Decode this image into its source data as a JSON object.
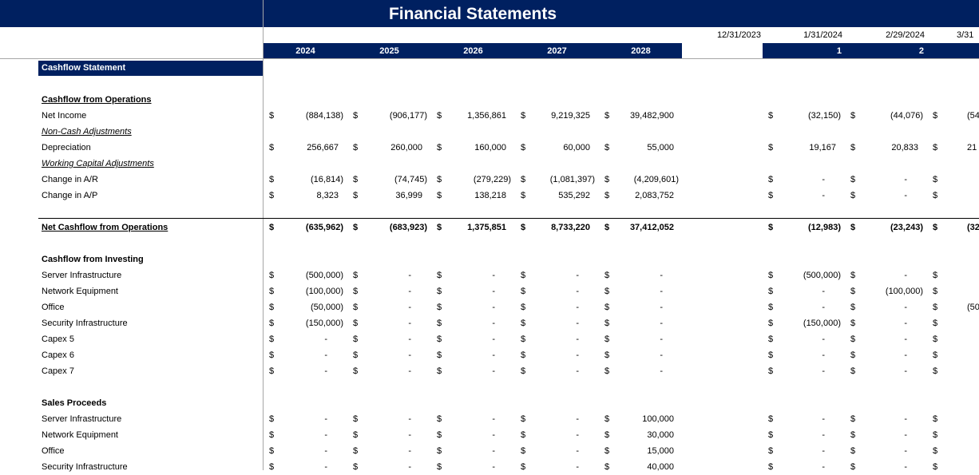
{
  "title": "Financial Statements",
  "colors": {
    "header_navy": "#002060"
  },
  "years": [
    "2024",
    "2025",
    "2026",
    "2027",
    "2028"
  ],
  "dates": [
    "12/31/2023",
    "1/31/2024",
    "2/29/2024",
    "3/31"
  ],
  "periods": [
    "1",
    "2"
  ],
  "rows": [
    {
      "label": "Cashflow Statement",
      "style": "hdr"
    },
    {
      "label": "",
      "style": "blank"
    },
    {
      "label": "Cashflow from Operations",
      "style": "bu"
    },
    {
      "label": "Net Income",
      "annual": [
        "(884,138)",
        "(906,177)",
        "1,356,861",
        "9,219,325",
        "39,482,900"
      ],
      "monthly": [
        "(32,150)",
        "(44,076)"
      ],
      "partial": "(54"
    },
    {
      "label": "Non-Cash Adjustments",
      "style": "iu"
    },
    {
      "label": "Depreciation",
      "annual": [
        "256,667",
        "260,000",
        "160,000",
        "60,000",
        "55,000"
      ],
      "monthly": [
        "19,167",
        "20,833"
      ],
      "partial": "21"
    },
    {
      "label": "Working Capital Adjustments",
      "style": "iu"
    },
    {
      "label": "Change in A/R",
      "annual": [
        "(16,814)",
        "(74,745)",
        "(279,229)",
        "(1,081,397)",
        "(4,209,601)"
      ],
      "monthly": [
        "-",
        "-"
      ],
      "partial": ""
    },
    {
      "label": "Change in A/P",
      "annual": [
        "8,323",
        "36,999",
        "138,218",
        "535,292",
        "2,083,752"
      ],
      "monthly": [
        "-",
        "-"
      ],
      "partial": ""
    },
    {
      "label": "",
      "style": "blank"
    },
    {
      "label": "Net Cashflow from Operations",
      "style": "bu",
      "bold_values": true,
      "annual": [
        "(635,962)",
        "(683,923)",
        "1,375,851",
        "8,733,220",
        "37,412,052"
      ],
      "monthly": [
        "(12,983)",
        "(23,243)"
      ],
      "partial": "(32"
    },
    {
      "label": "",
      "style": "blank"
    },
    {
      "label": "Cashflow from Investing",
      "style": "b"
    },
    {
      "label": "Server Infrastructure",
      "annual": [
        "(500,000)",
        "-",
        "-",
        "-",
        "-"
      ],
      "monthly": [
        "(500,000)",
        "-"
      ],
      "partial": ""
    },
    {
      "label": "Network Equipment",
      "annual": [
        "(100,000)",
        "-",
        "-",
        "-",
        "-"
      ],
      "monthly": [
        "-",
        "(100,000)"
      ],
      "partial": ""
    },
    {
      "label": "Office",
      "annual": [
        "(50,000)",
        "-",
        "-",
        "-",
        "-"
      ],
      "monthly": [
        "-",
        "-"
      ],
      "partial": "(50"
    },
    {
      "label": "Security Infrastructure",
      "annual": [
        "(150,000)",
        "-",
        "-",
        "-",
        "-"
      ],
      "monthly": [
        "(150,000)",
        "-"
      ],
      "partial": ""
    },
    {
      "label": "Capex 5",
      "annual": [
        "-",
        "-",
        "-",
        "-",
        "-"
      ],
      "monthly": [
        "-",
        "-"
      ],
      "partial": ""
    },
    {
      "label": "Capex 6",
      "annual": [
        "-",
        "-",
        "-",
        "-",
        "-"
      ],
      "monthly": [
        "-",
        "-"
      ],
      "partial": ""
    },
    {
      "label": "Capex 7",
      "annual": [
        "-",
        "-",
        "-",
        "-",
        "-"
      ],
      "monthly": [
        "-",
        "-"
      ],
      "partial": ""
    },
    {
      "label": "",
      "style": "blank"
    },
    {
      "label": "Sales Proceeds",
      "style": "b"
    },
    {
      "label": "Server Infrastructure",
      "annual": [
        "-",
        "-",
        "-",
        "-",
        "100,000"
      ],
      "monthly": [
        "-",
        "-"
      ],
      "partial": ""
    },
    {
      "label": "Network Equipment",
      "annual": [
        "-",
        "-",
        "-",
        "-",
        "30,000"
      ],
      "monthly": [
        "-",
        "-"
      ],
      "partial": ""
    },
    {
      "label": "Office",
      "annual": [
        "-",
        "-",
        "-",
        "-",
        "15,000"
      ],
      "monthly": [
        "-",
        "-"
      ],
      "partial": ""
    },
    {
      "label": "Security Infrastructure",
      "annual": [
        "-",
        "-",
        "-",
        "-",
        "40,000"
      ],
      "monthly": [
        "-",
        "-"
      ],
      "partial": ""
    }
  ],
  "currency_symbol": "$"
}
